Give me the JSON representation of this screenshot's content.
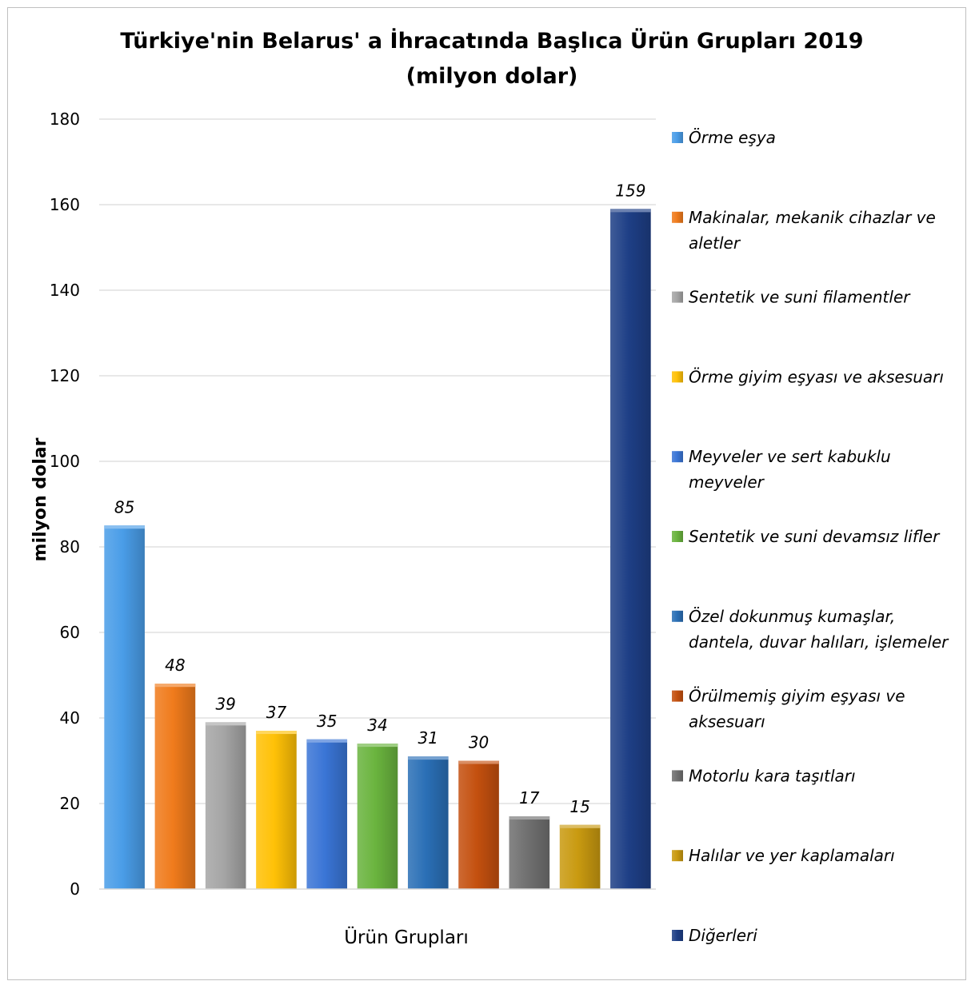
{
  "chart_data": {
    "type": "bar",
    "title_lines": [
      "Türkiye'nin Belarus' a İhracatında Başlıca Ürün Grupları 2019",
      "(milyon dolar)"
    ],
    "xlabel": "Ürün Grupları",
    "ylabel": "milyon dolar",
    "ylim": [
      0,
      180
    ],
    "yticks": [
      0,
      20,
      40,
      60,
      80,
      100,
      120,
      140,
      160,
      180
    ],
    "grid": true,
    "legend_position": "right",
    "series": [
      {
        "name_lines": [
          "Örme eşya"
        ],
        "value": 85,
        "value_label": "85",
        "color": "#4a9de8"
      },
      {
        "name_lines": [
          "Makinalar, mekanik cihazlar ve",
          "aletler"
        ],
        "value": 48,
        "value_label": "48",
        "color": "#f07b1c"
      },
      {
        "name_lines": [
          "Sentetik ve suni filamentler"
        ],
        "value": 39,
        "value_label": "39",
        "color": "#a5a5a5"
      },
      {
        "name_lines": [
          "Örme giyim eşyası ve aksesuarı"
        ],
        "value": 37,
        "value_label": "37",
        "color": "#ffc107"
      },
      {
        "name_lines": [
          "Meyveler ve sert kabuklu",
          "meyveler"
        ],
        "value": 35,
        "value_label": "35",
        "color": "#3a75d6"
      },
      {
        "name_lines": [
          "Sentetik ve suni devamsız lifler"
        ],
        "value": 34,
        "value_label": "34",
        "color": "#6ab43e"
      },
      {
        "name_lines": [
          "Özel dokunmuş kumaşlar,",
          "dantela, duvar halıları, işlemeler"
        ],
        "value": 31,
        "value_label": "31",
        "color": "#2a6fb6"
      },
      {
        "name_lines": [
          "Örülmemiş giyim eşyası ve",
          "aksesuarı"
        ],
        "value": 30,
        "value_label": "30",
        "color": "#c4500f"
      },
      {
        "name_lines": [
          "Motorlu kara taşıtları"
        ],
        "value": 17,
        "value_label": "17",
        "color": "#707070"
      },
      {
        "name_lines": [
          "Halılar ve yer kaplamaları"
        ],
        "value": 15,
        "value_label": "15",
        "color": "#c99a10"
      },
      {
        "name_lines": [
          "Diğerleri"
        ],
        "value": 159,
        "value_label": "159",
        "color": "#1e3f86"
      }
    ]
  }
}
